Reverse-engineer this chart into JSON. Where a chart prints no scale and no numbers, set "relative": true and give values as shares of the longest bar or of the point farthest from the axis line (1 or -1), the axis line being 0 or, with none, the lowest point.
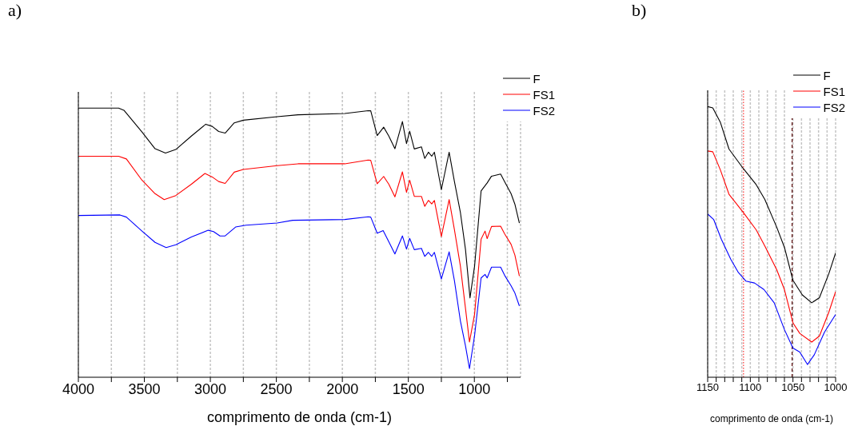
{
  "chart_data": [
    {
      "type": "line",
      "title": "a)",
      "xlabel": "comprimento de onda (cm-1)",
      "relative": true,
      "xlim": [
        4000,
        650
      ],
      "xticks": [
        4000,
        {
          "value": 3750,
          "label": null
        },
        3500,
        {
          "value": 3250,
          "label": null
        },
        3000,
        {
          "value": 2750,
          "label": null
        },
        2500,
        {
          "value": 2250,
          "label": null
        },
        2000,
        {
          "value": 1750,
          "label": null
        },
        1500,
        {
          "value": 1250,
          "label": null
        },
        1000,
        {
          "value": 750,
          "label": null
        }
      ],
      "grid": "x",
      "legend": "top right",
      "series": [
        {
          "name": "F",
          "color": "#000000",
          "x": [
            4000,
            3695,
            3655,
            3518,
            3419,
            3340,
            3262,
            3144,
            3035,
            2986,
            2937,
            2888,
            2819,
            2750,
            2494,
            2336,
            1982,
            1805,
            1785,
            1736,
            1687,
            1648,
            1602,
            1545,
            1514,
            1490,
            1455,
            1401,
            1376,
            1348,
            1323,
            1303,
            1250,
            1191,
            1151,
            1106,
            1067,
            1033,
            998,
            949,
            903,
            870,
            801,
            771,
            722,
            693,
            659
          ],
          "values": [
            1.0,
            1.0,
            0.992,
            0.911,
            0.849,
            0.833,
            0.846,
            0.896,
            0.94,
            0.932,
            0.913,
            0.907,
            0.945,
            0.955,
            0.968,
            0.975,
            0.98,
            0.99,
            0.99,
            0.898,
            0.929,
            0.896,
            0.849,
            0.95,
            0.868,
            0.914,
            0.848,
            0.856,
            0.813,
            0.836,
            0.821,
            0.836,
            0.697,
            0.836,
            0.727,
            0.613,
            0.474,
            0.295,
            0.414,
            0.692,
            0.722,
            0.747,
            0.755,
            0.727,
            0.682,
            0.643,
            0.573
          ]
        },
        {
          "name": "FS1",
          "color": "#ff0000",
          "x": [
            4000,
            3695,
            3636,
            3518,
            3419,
            3350,
            3262,
            3144,
            3041,
            2986,
            2937,
            2888,
            2819,
            2750,
            2494,
            2336,
            1982,
            1805,
            1785,
            1736,
            1687,
            1648,
            1602,
            1545,
            1514,
            1490,
            1455,
            1401,
            1376,
            1348,
            1323,
            1303,
            1250,
            1191,
            1151,
            1106,
            1067,
            1037,
            998,
            949,
            919,
            903,
            870,
            801,
            771,
            722,
            693,
            659
          ],
          "values": [
            0.821,
            0.821,
            0.811,
            0.732,
            0.682,
            0.66,
            0.675,
            0.717,
            0.757,
            0.744,
            0.727,
            0.72,
            0.762,
            0.772,
            0.786,
            0.793,
            0.793,
            0.807,
            0.806,
            0.719,
            0.746,
            0.717,
            0.67,
            0.763,
            0.687,
            0.732,
            0.672,
            0.672,
            0.635,
            0.657,
            0.644,
            0.657,
            0.523,
            0.66,
            0.548,
            0.414,
            0.255,
            0.131,
            0.235,
            0.513,
            0.543,
            0.515,
            0.56,
            0.561,
            0.533,
            0.494,
            0.454,
            0.376
          ]
        },
        {
          "name": "FS2",
          "color": "#0000ff",
          "x": [
            4000,
            3685,
            3636,
            3518,
            3419,
            3335,
            3262,
            3144,
            3016,
            2976,
            2927,
            2888,
            2809,
            2730,
            2494,
            2376,
            1982,
            1805,
            1785,
            1736,
            1691,
            1648,
            1602,
            1545,
            1514,
            1490,
            1455,
            1401,
            1376,
            1348,
            1323,
            1303,
            1250,
            1191,
            1151,
            1106,
            1067,
            1037,
            998,
            949,
            919,
            903,
            870,
            801,
            771,
            722,
            693,
            659
          ],
          "values": [
            0.601,
            0.603,
            0.595,
            0.543,
            0.501,
            0.482,
            0.492,
            0.521,
            0.546,
            0.541,
            0.525,
            0.525,
            0.558,
            0.565,
            0.573,
            0.583,
            0.586,
            0.596,
            0.595,
            0.535,
            0.545,
            0.503,
            0.458,
            0.525,
            0.476,
            0.516,
            0.474,
            0.479,
            0.449,
            0.464,
            0.449,
            0.464,
            0.365,
            0.466,
            0.359,
            0.21,
            0.116,
            0.032,
            0.156,
            0.369,
            0.382,
            0.369,
            0.409,
            0.409,
            0.379,
            0.34,
            0.313,
            0.265
          ]
        }
      ]
    },
    {
      "type": "line",
      "title": "b)",
      "xlabel": "comprimento de onda (cm-1)",
      "relative": true,
      "xlim": [
        1150,
        1000
      ],
      "xticks": [
        1150,
        {
          "value": 1140,
          "label": null
        },
        {
          "value": 1130,
          "label": null
        },
        {
          "value": 1120,
          "label": null
        },
        {
          "value": 1110,
          "label": null
        },
        1100,
        {
          "value": 1090,
          "label": null
        },
        {
          "value": 1080,
          "label": null
        },
        {
          "value": 1070,
          "label": null
        },
        {
          "value": 1060,
          "label": null
        },
        1050,
        {
          "value": 1040,
          "label": null
        },
        {
          "value": 1030,
          "label": null
        },
        {
          "value": 1020,
          "label": null
        },
        {
          "value": 1010,
          "label": null
        },
        1000
      ],
      "grid": "x",
      "legend": "top right",
      "ref_lines": [
        {
          "axis": "x",
          "value": 1108,
          "color": "#ff3333",
          "line_style": "dotted"
        },
        {
          "axis": "x",
          "value": 1051,
          "color": "#550000",
          "line_style": "dashed"
        }
      ],
      "series": [
        {
          "name": "F",
          "color": "#000000",
          "x": [
            1150,
            1144,
            1135,
            1125,
            1108,
            1093,
            1083,
            1069,
            1060,
            1050,
            1039,
            1028,
            1019,
            1008,
            1000
          ],
          "values": [
            1.0,
            0.995,
            0.941,
            0.843,
            0.77,
            0.711,
            0.657,
            0.554,
            0.48,
            0.358,
            0.304,
            0.275,
            0.294,
            0.382,
            0.459
          ]
        },
        {
          "name": "FS1",
          "color": "#ff0000",
          "x": [
            1150,
            1144,
            1135,
            1125,
            1108,
            1093,
            1083,
            1069,
            1060,
            1050,
            1042,
            1028,
            1019,
            1008,
            1000
          ],
          "values": [
            0.836,
            0.833,
            0.765,
            0.676,
            0.608,
            0.544,
            0.485,
            0.397,
            0.324,
            0.201,
            0.162,
            0.13,
            0.152,
            0.24,
            0.316
          ]
        },
        {
          "name": "FS2",
          "color": "#0000ff",
          "x": [
            1150,
            1143,
            1134,
            1123,
            1114,
            1105,
            1095,
            1084,
            1072,
            1060,
            1050,
            1042,
            1033,
            1025,
            1013,
            1000
          ],
          "values": [
            0.603,
            0.583,
            0.51,
            0.436,
            0.387,
            0.355,
            0.348,
            0.324,
            0.275,
            0.176,
            0.108,
            0.093,
            0.047,
            0.083,
            0.167,
            0.232
          ]
        }
      ]
    }
  ]
}
